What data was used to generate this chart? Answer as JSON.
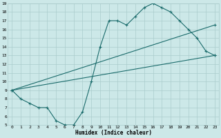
{
  "xlabel": "Humidex (Indice chaleur)",
  "xlim": [
    -0.5,
    23.5
  ],
  "ylim": [
    5,
    19
  ],
  "xticks": [
    0,
    1,
    2,
    3,
    4,
    5,
    6,
    7,
    8,
    9,
    10,
    11,
    12,
    13,
    14,
    15,
    16,
    17,
    18,
    19,
    20,
    21,
    22,
    23
  ],
  "yticks": [
    5,
    6,
    7,
    8,
    9,
    10,
    11,
    12,
    13,
    14,
    15,
    16,
    17,
    18,
    19
  ],
  "bg_color": "#cce8e8",
  "grid_color": "#aacccc",
  "line_color": "#1a6b6b",
  "line1_x": [
    0,
    1,
    2,
    3,
    4,
    5,
    6,
    7,
    8,
    9,
    10,
    11,
    12,
    13,
    14,
    15,
    16,
    17,
    18,
    19,
    20,
    21,
    22,
    23
  ],
  "line1_y": [
    9,
    8,
    7.5,
    7,
    7,
    5.5,
    5,
    5,
    6.5,
    10,
    14,
    17,
    17,
    16.5,
    17.5,
    18.5,
    19,
    18.5,
    18,
    17,
    16,
    15,
    13.5,
    13
  ],
  "line2_x": [
    0,
    23
  ],
  "line2_y": [
    9,
    13
  ],
  "line3_x": [
    0,
    23
  ],
  "line3_y": [
    9,
    16.5
  ],
  "font_family": "monospace"
}
